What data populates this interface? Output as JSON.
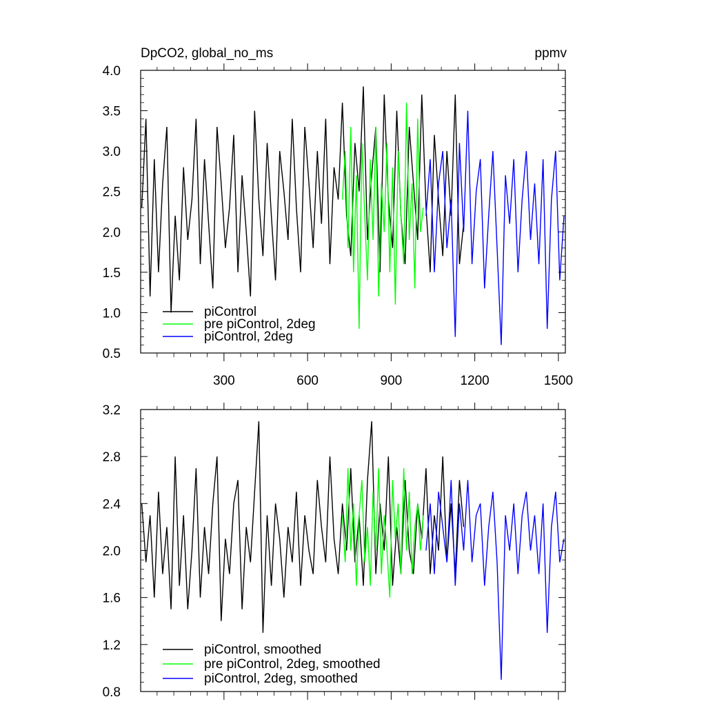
{
  "chart_data": [
    {
      "type": "line",
      "title_left": "DpCO2, global_no_ms",
      "title_right": "ppmv",
      "xlim": [
        1,
        1525
      ],
      "ylim": [
        0.5,
        4.0
      ],
      "x_ticks": [
        300,
        600,
        900,
        1200,
        1500
      ],
      "x_tick_labels": [
        "300",
        "600",
        "900",
        "1200",
        "1500"
      ],
      "y_ticks": [
        0.5,
        1.0,
        1.5,
        2.0,
        2.5,
        3.0,
        3.5,
        4.0
      ],
      "y_tick_labels": [
        "0.5",
        "1.0",
        "1.5",
        "2.0",
        "2.5",
        "3.0",
        "3.5",
        "4.0"
      ],
      "legend_position": "bottom-left",
      "series": [
        {
          "name": "piControl",
          "color": "#000000",
          "x": [
            5,
            20,
            35,
            50,
            65,
            80,
            95,
            110,
            125,
            140,
            155,
            170,
            185,
            200,
            215,
            230,
            245,
            260,
            275,
            290,
            305,
            320,
            335,
            350,
            365,
            380,
            395,
            410,
            425,
            440,
            455,
            470,
            485,
            500,
            515,
            530,
            545,
            560,
            575,
            590,
            605,
            620,
            635,
            650,
            665,
            680,
            695,
            710,
            725,
            740,
            755,
            770,
            785,
            800,
            815,
            830,
            845,
            860,
            875,
            890,
            905,
            920,
            935,
            950,
            965,
            980,
            995,
            1010,
            1025,
            1040,
            1055,
            1070,
            1085,
            1100,
            1115,
            1130,
            1145,
            1160
          ],
          "y": [
            2.3,
            3.4,
            1.2,
            2.9,
            1.5,
            2.6,
            3.3,
            1.0,
            2.2,
            1.4,
            2.8,
            1.9,
            2.4,
            3.4,
            1.6,
            2.9,
            2.1,
            1.3,
            3.3,
            2.6,
            1.8,
            2.3,
            3.2,
            1.5,
            2.7,
            2.0,
            1.2,
            3.5,
            2.4,
            1.7,
            3.1,
            2.2,
            1.4,
            3.0,
            2.5,
            1.9,
            3.4,
            2.3,
            1.5,
            3.3,
            2.6,
            1.8,
            3.0,
            2.1,
            3.4,
            1.6,
            2.8,
            2.4,
            3.6,
            2.2,
            1.7,
            3.1,
            2.5,
            3.8,
            1.9,
            2.7,
            3.3,
            1.5,
            3.7,
            2.4,
            1.8,
            3.5,
            2.2,
            1.6,
            3.3,
            2.6,
            1.9,
            3.7,
            2.3,
            1.5,
            3.2,
            2.4,
            1.7,
            3.0,
            2.2,
            3.7,
            1.6,
            2.1
          ]
        },
        {
          "name": "pre piControl, 2deg",
          "color": "#00ff00",
          "x": [
            725,
            735,
            745,
            755,
            765,
            775,
            785,
            795,
            805,
            815,
            825,
            835,
            845,
            855,
            865,
            875,
            885,
            895,
            905,
            915,
            925,
            935,
            945,
            955,
            965,
            975,
            985,
            995,
            1005,
            1015
          ],
          "y": [
            2.4,
            3.0,
            1.8,
            3.3,
            1.5,
            2.7,
            0.8,
            3.1,
            2.2,
            1.4,
            2.9,
            1.9,
            3.3,
            1.2,
            2.6,
            2.0,
            3.1,
            1.5,
            2.8,
            1.1,
            3.0,
            2.2,
            1.6,
            3.6,
            1.9,
            2.6,
            1.3,
            3.4,
            2.0,
            2.3
          ]
        },
        {
          "name": "piControl, 2deg",
          "color": "#0000ff",
          "x": [
            1025,
            1040,
            1055,
            1070,
            1085,
            1100,
            1115,
            1130,
            1145,
            1160,
            1175,
            1190,
            1205,
            1220,
            1235,
            1250,
            1265,
            1280,
            1295,
            1310,
            1325,
            1340,
            1355,
            1370,
            1385,
            1400,
            1415,
            1430,
            1445,
            1460,
            1475,
            1490,
            1505,
            1520
          ],
          "y": [
            2.2,
            2.9,
            1.5,
            2.6,
            3.0,
            1.8,
            2.4,
            0.7,
            3.1,
            2.0,
            3.5,
            1.6,
            2.5,
            2.9,
            1.3,
            2.2,
            3.0,
            1.8,
            0.6,
            2.7,
            2.1,
            2.9,
            1.5,
            2.4,
            3.0,
            1.9,
            2.6,
            1.6,
            2.9,
            0.8,
            2.4,
            3.0,
            1.4,
            2.2
          ]
        }
      ]
    },
    {
      "type": "line",
      "xlim": [
        1,
        1525
      ],
      "ylim": [
        0.8,
        3.2
      ],
      "y_ticks": [
        0.8,
        1.2,
        1.6,
        2.0,
        2.4,
        2.8,
        3.2
      ],
      "y_tick_labels": [
        "0.8",
        "1.2",
        "1.6",
        "2.0",
        "2.4",
        "2.8",
        "3.2"
      ],
      "x_ticks": [
        300,
        600,
        900,
        1200,
        1500
      ],
      "legend_position": "bottom-left",
      "series": [
        {
          "name": "piControl, smoothed",
          "color": "#000000",
          "x": [
            5,
            20,
            35,
            50,
            65,
            80,
            95,
            110,
            125,
            140,
            155,
            170,
            185,
            200,
            215,
            230,
            245,
            260,
            275,
            290,
            305,
            320,
            335,
            350,
            365,
            380,
            395,
            410,
            425,
            440,
            455,
            470,
            485,
            500,
            515,
            530,
            545,
            560,
            575,
            590,
            605,
            620,
            635,
            650,
            665,
            680,
            695,
            710,
            725,
            740,
            755,
            770,
            785,
            800,
            815,
            830,
            845,
            860,
            875,
            890,
            905,
            920,
            935,
            950,
            965,
            980,
            995,
            1010,
            1025,
            1040,
            1055,
            1070,
            1085,
            1100,
            1115,
            1130,
            1145,
            1160
          ],
          "y": [
            2.4,
            1.9,
            2.3,
            1.6,
            2.5,
            1.8,
            2.2,
            1.5,
            2.8,
            1.7,
            2.3,
            1.5,
            2.0,
            2.7,
            1.6,
            2.2,
            1.8,
            2.4,
            2.8,
            1.4,
            2.1,
            1.8,
            2.4,
            2.6,
            1.5,
            2.2,
            1.9,
            2.5,
            3.1,
            1.3,
            2.3,
            1.7,
            2.4,
            2.1,
            1.6,
            2.2,
            1.9,
            2.5,
            1.7,
            2.3,
            2.0,
            1.8,
            2.6,
            2.2,
            1.9,
            2.8,
            2.1,
            1.8,
            2.4,
            2.0,
            2.7,
            1.9,
            2.3,
            1.7,
            2.6,
            3.1,
            1.8,
            2.4,
            2.0,
            2.8,
            1.7,
            2.2,
            1.8,
            2.6,
            2.0,
            1.8,
            2.4,
            2.1,
            2.7,
            1.8,
            2.3,
            2.0,
            2.8,
            1.9,
            2.4,
            1.8,
            2.6,
            2.2
          ]
        },
        {
          "name": "pre piControl, 2deg, smoothed",
          "color": "#00ff00",
          "x": [
            725,
            735,
            745,
            755,
            765,
            775,
            785,
            795,
            805,
            815,
            825,
            835,
            845,
            855,
            865,
            875,
            885,
            895,
            905,
            915,
            925,
            935,
            945,
            955,
            965,
            975,
            985,
            995,
            1005,
            1015
          ],
          "y": [
            2.3,
            1.9,
            2.7,
            2.0,
            2.4,
            1.7,
            2.3,
            2.6,
            1.9,
            2.2,
            1.7,
            2.5,
            2.0,
            2.7,
            1.8,
            2.3,
            2.0,
            1.6,
            2.6,
            2.1,
            2.4,
            1.8,
            2.7,
            2.0,
            2.5,
            1.8,
            2.2,
            2.4,
            2.0,
            2.3
          ]
        },
        {
          "name": "piControl, 2deg, smoothed",
          "color": "#0000ff",
          "x": [
            1025,
            1040,
            1055,
            1070,
            1085,
            1100,
            1115,
            1130,
            1145,
            1160,
            1175,
            1190,
            1205,
            1220,
            1235,
            1250,
            1265,
            1280,
            1295,
            1310,
            1325,
            1340,
            1355,
            1370,
            1385,
            1400,
            1415,
            1430,
            1445,
            1460,
            1475,
            1490,
            1505,
            1520
          ],
          "y": [
            2.0,
            2.4,
            1.8,
            2.5,
            2.2,
            1.9,
            2.6,
            1.7,
            2.4,
            2.0,
            2.6,
            1.9,
            2.3,
            2.4,
            1.7,
            2.2,
            2.5,
            1.9,
            0.9,
            2.3,
            2.0,
            2.4,
            1.8,
            2.3,
            2.5,
            2.0,
            2.3,
            1.8,
            2.4,
            1.3,
            2.2,
            2.5,
            1.9,
            2.1
          ]
        }
      ]
    }
  ]
}
